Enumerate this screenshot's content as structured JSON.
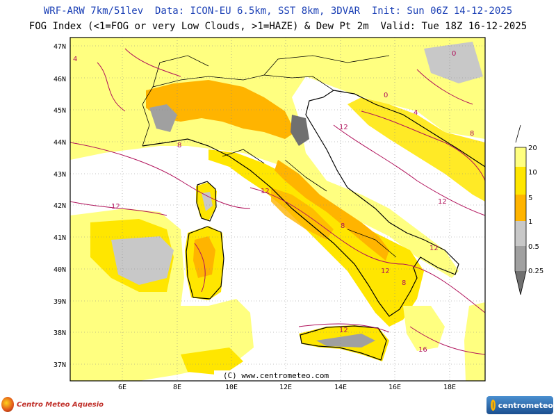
{
  "header": {
    "line1": "WRF-ARW 7km/51lev  Data: ICON-EU 6.5km, SST 8km, 3DVAR  Init: Sun 06Z 14-12-2025",
    "line2": "FOG Index (<1=FOG or very Low Clouds, >1=HAZE) & Dew Pt 2m  Valid: Tue 18Z 16-12-2025"
  },
  "map": {
    "lat_labels": [
      "47N",
      "46N",
      "45N",
      "44N",
      "43N",
      "42N",
      "41N",
      "40N",
      "39N",
      "38N",
      "37N"
    ],
    "lon_labels": [
      "6E",
      "8E",
      "10E",
      "12E",
      "14E",
      "16E",
      "18E"
    ],
    "credit": "(C) www.centrometeo.com",
    "contour_labels": [
      "12",
      "12",
      "12",
      "12",
      "12",
      "12",
      "8",
      "8",
      "8",
      "4",
      "4",
      "0",
      "0",
      "16",
      "12",
      "8"
    ]
  },
  "legend": {
    "labels": [
      "20",
      "10",
      "5",
      "1",
      "0.5",
      "0.25"
    ],
    "colors": {
      "c20_10": "#ffff80",
      "c10_5": "#ffe600",
      "c5_1": "#ffb400",
      "c1_05": "#c8c8c8",
      "c05_025": "#a0a0a0",
      "c_lt025": "#707070"
    }
  },
  "logos": {
    "left_text": "Centro Meteo Aquesio",
    "right_text": "centrometeo"
  }
}
